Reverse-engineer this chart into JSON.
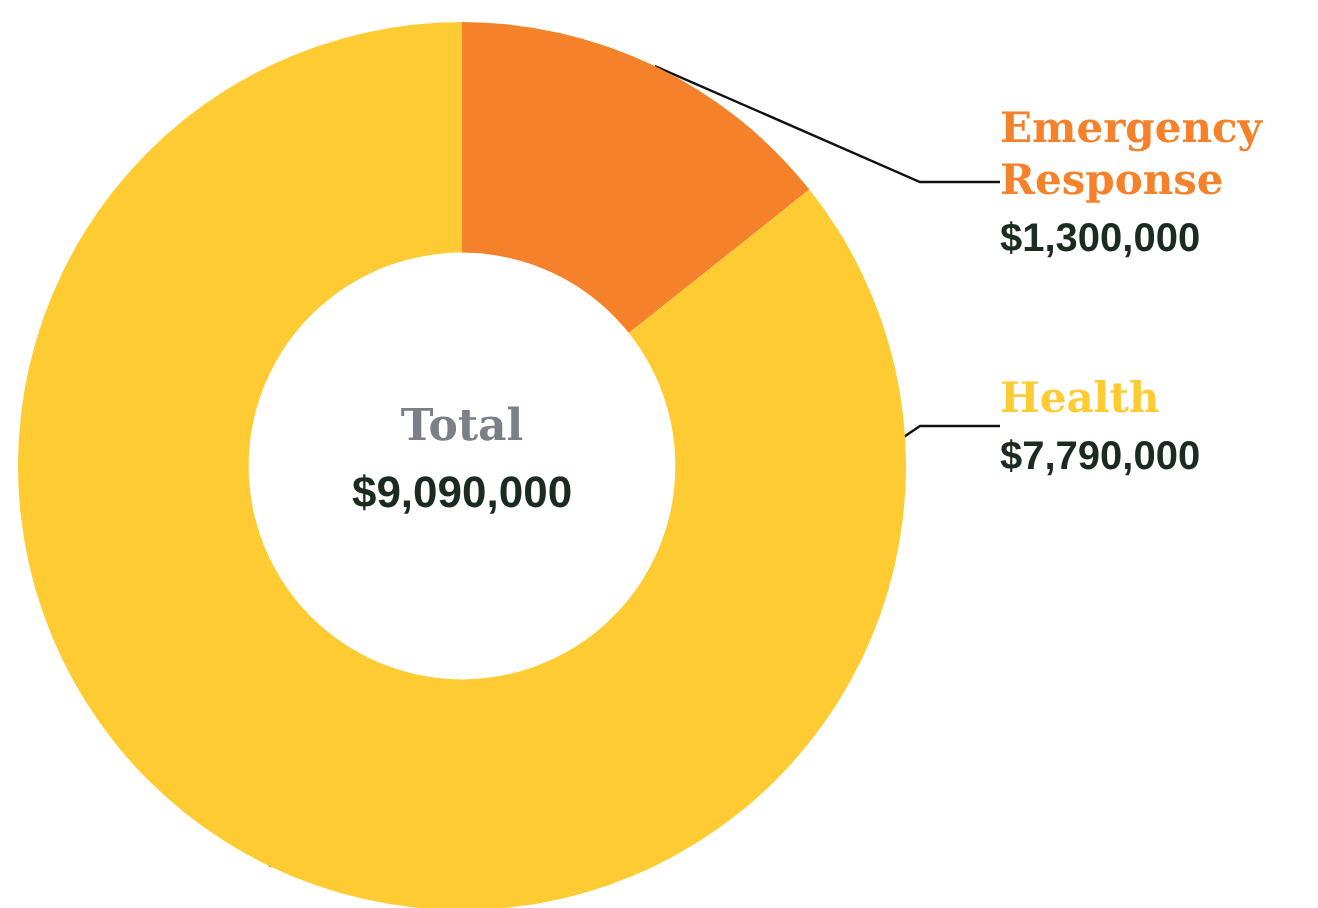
{
  "chart_data": {
    "type": "donut",
    "categories": [
      "Emergency Response",
      "Health"
    ],
    "values": [
      1300000,
      7790000
    ],
    "colors": [
      "#f5822a",
      "#fecc32"
    ],
    "value_labels": [
      "$1,300,000",
      "$7,790,000"
    ],
    "annotations": [
      "Total",
      "$9,090,000"
    ],
    "legend": false
  }
}
